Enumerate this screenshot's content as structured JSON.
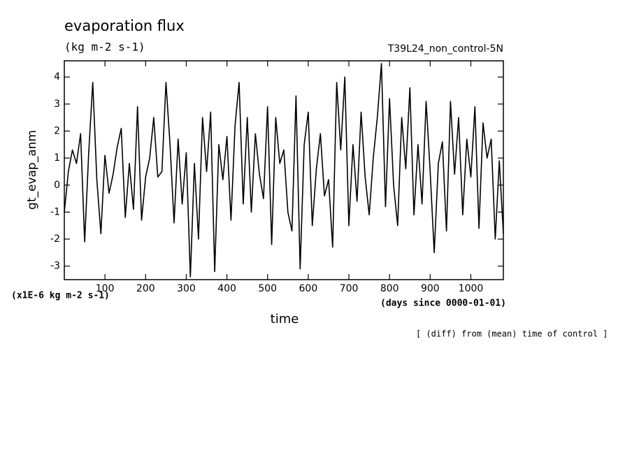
{
  "chart_data": {
    "type": "line",
    "title": "evaporation flux",
    "subtitle": "(kg m-2 s-1)",
    "run_label": "T39L24_non_control-5N",
    "ylabel": "gt_evap_anm",
    "xlabel": "time",
    "y_units_note": "(x1E-6 kg m-2 s-1)",
    "x_units_note": "(days since 0000-01-01)",
    "footnote": "[ (diff) from (mean) time of control ]",
    "xlim": [
      0,
      1080
    ],
    "ylim": [
      -3.5,
      4.6
    ],
    "xticks": [
      100,
      200,
      300,
      400,
      500,
      600,
      700,
      800,
      900,
      1000
    ],
    "yticks": [
      -3,
      -2,
      -1,
      0,
      1,
      2,
      3,
      4
    ],
    "x": [
      0,
      10,
      20,
      30,
      40,
      50,
      60,
      70,
      80,
      90,
      100,
      110,
      120,
      130,
      140,
      150,
      160,
      170,
      180,
      190,
      200,
      210,
      220,
      230,
      240,
      250,
      260,
      270,
      280,
      290,
      300,
      310,
      320,
      330,
      340,
      350,
      360,
      370,
      380,
      390,
      400,
      410,
      420,
      430,
      440,
      450,
      460,
      470,
      480,
      490,
      500,
      510,
      520,
      530,
      540,
      550,
      560,
      570,
      580,
      590,
      600,
      610,
      620,
      630,
      640,
      650,
      660,
      670,
      680,
      690,
      700,
      710,
      720,
      730,
      740,
      750,
      760,
      770,
      780,
      790,
      800,
      810,
      820,
      830,
      840,
      850,
      860,
      870,
      880,
      890,
      900,
      910,
      920,
      930,
      940,
      950,
      960,
      970,
      980,
      990,
      1000,
      1010,
      1020,
      1030,
      1040,
      1050,
      1060,
      1070,
      1080
    ],
    "series": [
      {
        "color": "#000000",
        "values": [
          -1.0,
          0.5,
          1.3,
          0.8,
          1.9,
          -2.1,
          1.2,
          3.8,
          0.2,
          -1.8,
          1.1,
          -0.3,
          0.4,
          1.4,
          2.1,
          -1.2,
          0.8,
          -0.9,
          2.9,
          -1.3,
          0.3,
          1.0,
          2.5,
          0.3,
          0.5,
          3.8,
          1.5,
          -1.4,
          1.7,
          -0.7,
          1.2,
          -3.4,
          0.8,
          -2.0,
          2.5,
          0.5,
          2.7,
          -3.2,
          1.5,
          0.2,
          1.8,
          -1.3,
          2.2,
          3.8,
          -0.7,
          2.5,
          -1.0,
          1.9,
          0.4,
          -0.5,
          2.9,
          -2.2,
          2.5,
          0.8,
          1.3,
          -1.0,
          -1.7,
          3.3,
          -3.1,
          1.5,
          2.7,
          -1.5,
          0.6,
          1.9,
          -0.4,
          0.2,
          -2.3,
          3.8,
          1.3,
          4.0,
          -1.5,
          1.5,
          -0.6,
          2.7,
          0.3,
          -1.1,
          1.0,
          2.5,
          4.5,
          -0.8,
          3.2,
          0.0,
          -1.5,
          2.5,
          0.6,
          3.6,
          -1.1,
          1.5,
          -0.7,
          3.1,
          0.5,
          -2.5,
          0.8,
          1.6,
          -1.7,
          3.1,
          0.4,
          2.5,
          -1.1,
          1.7,
          0.3,
          2.9,
          -1.6,
          2.3,
          1.0,
          1.7,
          -2.0,
          0.9,
          -1.8
        ]
      }
    ]
  }
}
